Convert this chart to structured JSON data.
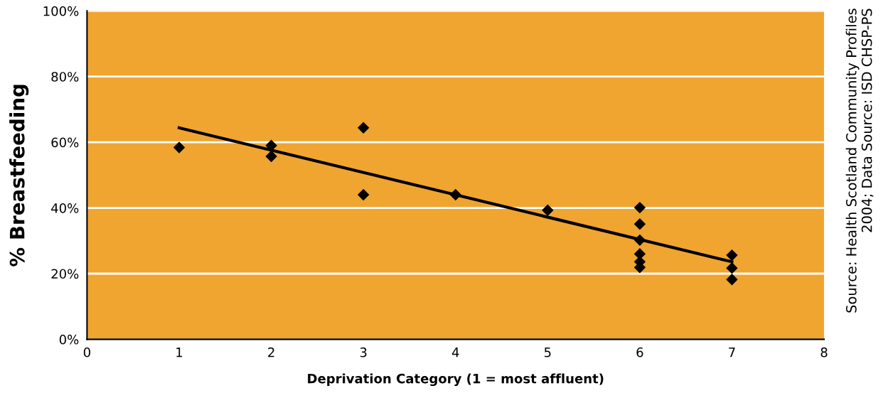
{
  "chart_data": {
    "type": "scatter",
    "xlabel": "Deprivation Category (1 = most affluent)",
    "ylabel": "% Breastfeeding",
    "annotations": [
      "Source: Health Scotland Community Profiles\n2004; Data Source: ISD CHSP-PS"
    ],
    "xlim": [
      0,
      8
    ],
    "xticks": [
      0,
      1,
      2,
      3,
      4,
      5,
      6,
      7,
      8
    ],
    "ylim": [
      0,
      100
    ],
    "yticks": [
      {
        "value": 0,
        "label": "0%"
      },
      {
        "value": 20,
        "label": "20%"
      },
      {
        "value": 40,
        "label": "40%"
      },
      {
        "value": 60,
        "label": "60%"
      },
      {
        "value": 80,
        "label": "80%"
      },
      {
        "value": 100,
        "label": "100%"
      }
    ],
    "grid": "y",
    "marker": "diamond",
    "series": [
      {
        "color": "#000000",
        "x": [
          1,
          2,
          2,
          3,
          3,
          4,
          5,
          6,
          6,
          6,
          6,
          6,
          6,
          7,
          7,
          7
        ],
        "values": [
          58.4,
          59.0,
          55.7,
          64.4,
          44.0,
          44.0,
          39.3,
          40.1,
          35.1,
          30.2,
          26.0,
          23.6,
          21.9,
          25.6,
          21.7,
          18.2
        ]
      },
      {
        "type": "line",
        "color": "#000000",
        "x": [
          1,
          7
        ],
        "values": [
          64.4,
          23.6
        ],
        "marker": "none",
        "line_style": "solid"
      }
    ]
  }
}
